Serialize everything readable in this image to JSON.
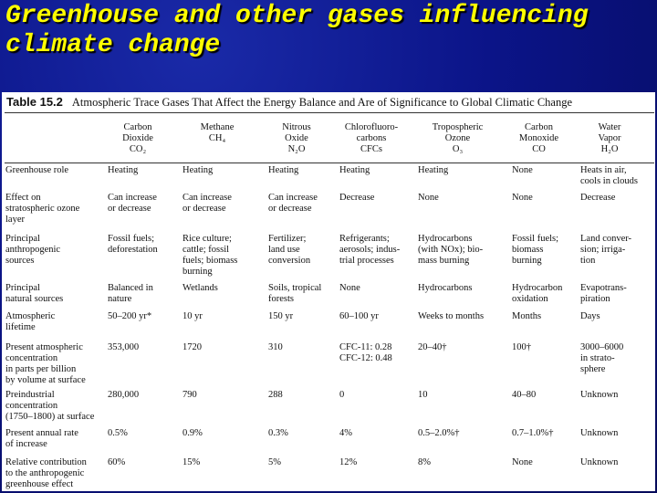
{
  "slide_title": "Greenhouse and other gases influencing climate change",
  "table": {
    "number": "Table 15.2",
    "caption": "Atmospheric Trace Gases That Affect the Energy Balance and Are of Significance to Global Climatic Change",
    "columns": [
      "Carbon\nDioxide\nCO₂",
      "Methane\nCH₄",
      "Nitrous\nOxide\nN₂O",
      "Chlorofluoro-\ncarbons\nCFCs",
      "Tropospheric\nOzone\nO₃",
      "Carbon\nMonoxide\nCO",
      "Water\nVapor\nH₂O"
    ],
    "rows": [
      {
        "label": "Greenhouse role",
        "cells": [
          "Heating",
          "Heating",
          "Heating",
          "Heating",
          "Heating",
          "None",
          "Heats in air,\ncools in clouds"
        ]
      },
      {
        "label": "Effect on\nstratospheric ozone\nlayer",
        "cells": [
          "Can increase\nor decrease",
          "Can increase\nor decrease",
          "Can increase\nor decrease",
          "Decrease",
          "None",
          "None",
          "Decrease"
        ]
      },
      {
        "label": "Principal\nanthropogenic\nsources",
        "cells": [
          "Fossil fuels;\ndeforestation",
          "Rice culture;\ncattle; fossil\nfuels; biomass\nburning",
          "Fertilizer;\nland use\nconversion",
          "Refrigerants;\naerosols; indus-\ntrial processes",
          "Hydrocarbons\n(with NOx); bio-\nmass burning",
          "Fossil fuels;\nbiomass\nburning",
          "Land conver-\nsion; irriga-\ntion"
        ]
      },
      {
        "label": "Principal\nnatural sources",
        "cells": [
          "Balanced in\nnature",
          "Wetlands",
          "Soils, tropical\nforests",
          "None",
          "Hydrocarbons",
          "Hydrocarbon\noxidation",
          "Evapotrans-\npiration"
        ]
      },
      {
        "label": "Atmospheric\nlifetime",
        "cells": [
          "50–200 yr*",
          "10 yr",
          "150 yr",
          "60–100 yr",
          "Weeks to months",
          "Months",
          "Days"
        ]
      },
      {
        "label": "Present atmospheric\nconcentration\nin parts per billion\nby volume at surface",
        "cells": [
          "353,000",
          "1720",
          "310",
          "CFC-11: 0.28\nCFC-12: 0.48",
          "20–40†",
          "100†",
          "3000–6000\nin strato-\nsphere"
        ]
      },
      {
        "label": "Preindustrial\nconcentration\n(1750–1800) at surface",
        "cells": [
          "280,000",
          "790",
          "288",
          "0",
          "10",
          "40–80",
          "Unknown"
        ]
      },
      {
        "label": "Present annual rate\nof increase",
        "cells": [
          "0.5%",
          "0.9%",
          "0.3%",
          "4%",
          "0.5–2.0%†",
          "0.7–1.0%†",
          "Unknown"
        ]
      },
      {
        "label": "Relative contribution\nto the anthropogenic\ngreenhouse effect",
        "cells": [
          "60%",
          "15%",
          "5%",
          "12%",
          "8%",
          "None",
          "Unknown"
        ]
      }
    ]
  }
}
